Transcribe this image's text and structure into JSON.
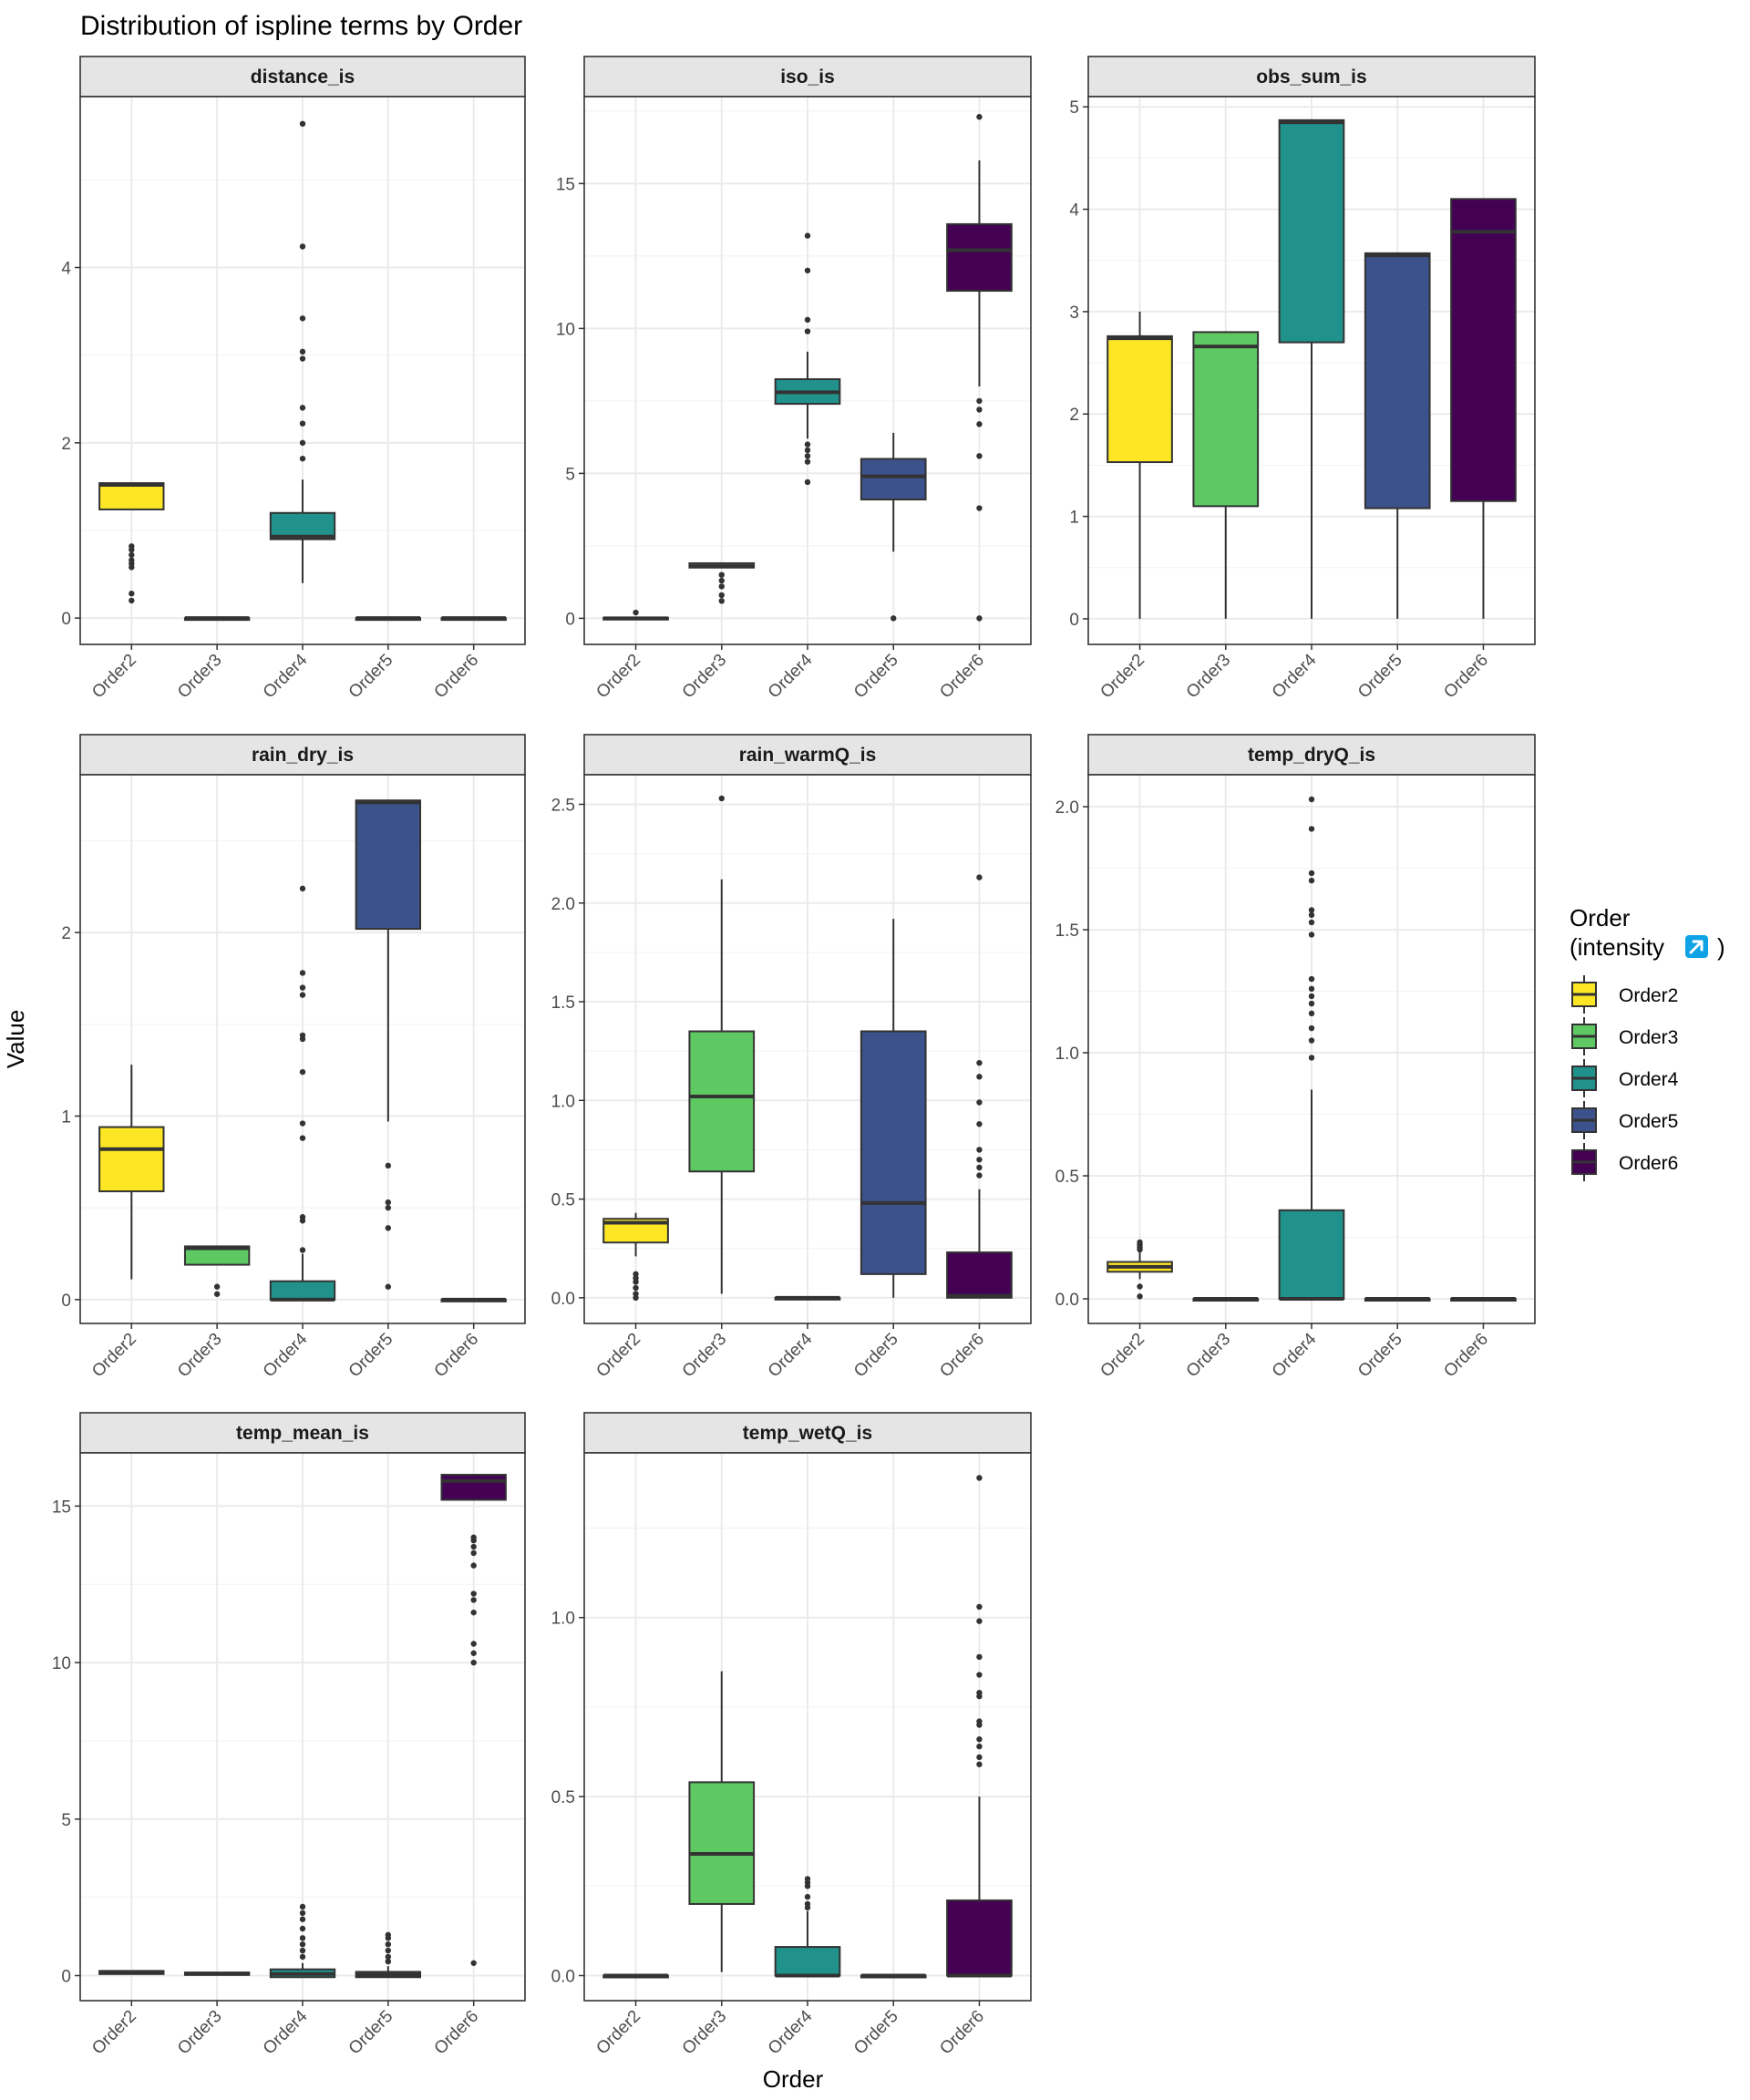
{
  "title": "Distribution of ispline terms by Order",
  "axis": {
    "x_label": "Order",
    "y_label": "Value"
  },
  "legend": {
    "title_line1": "Order",
    "title_line2_prefix": "(intensity",
    "title_icon": "arrow-up-right-icon",
    "title_line2_suffix": ")",
    "items": [
      "Order2",
      "Order3",
      "Order4",
      "Order5",
      "Order6"
    ],
    "colors": [
      "#FDE725",
      "#5EC962",
      "#21918C",
      "#3B528B",
      "#440154"
    ]
  },
  "chart_data": [
    {
      "type": "box",
      "panel": "distance_is",
      "categories": [
        "Order2",
        "Order3",
        "Order4",
        "Order5",
        "Order6"
      ],
      "ylim": [
        -0.3,
        5.95
      ],
      "yticks": [
        0,
        2,
        4
      ],
      "ytick_labels": [
        "0",
        "2",
        "4"
      ],
      "boxes": [
        {
          "q1": 1.24,
          "median": 1.52,
          "q3": 1.54,
          "whisker_low": 1.24,
          "whisker_high": 1.54,
          "outliers": [
            0.2,
            0.28,
            0.58,
            0.62,
            0.66,
            0.72,
            0.78,
            0.82
          ]
        },
        {
          "q1": 0,
          "median": 0,
          "q3": 0,
          "whisker_low": 0,
          "whisker_high": 0,
          "outliers": []
        },
        {
          "q1": 0.9,
          "median": 0.93,
          "q3": 1.2,
          "whisker_low": 0.4,
          "whisker_high": 1.58,
          "outliers": [
            1.82,
            2.0,
            2.22,
            2.4,
            2.96,
            3.04,
            3.42,
            4.24,
            5.64
          ]
        },
        {
          "q1": 0,
          "median": 0,
          "q3": 0,
          "whisker_low": 0,
          "whisker_high": 0,
          "outliers": []
        },
        {
          "q1": 0,
          "median": 0,
          "q3": 0,
          "whisker_low": 0,
          "whisker_high": 0,
          "outliers": []
        }
      ]
    },
    {
      "type": "box",
      "panel": "iso_is",
      "categories": [
        "Order2",
        "Order3",
        "Order4",
        "Order5",
        "Order6"
      ],
      "ylim": [
        -0.9,
        18.0
      ],
      "yticks": [
        0,
        5,
        10,
        15
      ],
      "ytick_labels": [
        "0",
        "5",
        "10",
        "15"
      ],
      "boxes": [
        {
          "q1": 0,
          "median": 0,
          "q3": 0.02,
          "whisker_low": 0,
          "whisker_high": 0.05,
          "outliers": [
            0.2
          ]
        },
        {
          "q1": 1.75,
          "median": 1.8,
          "q3": 1.9,
          "whisker_low": 1.75,
          "whisker_high": 1.9,
          "outliers": [
            0.6,
            0.8,
            1.1,
            1.3,
            1.5
          ]
        },
        {
          "q1": 7.4,
          "median": 7.8,
          "q3": 8.25,
          "whisker_low": 6.2,
          "whisker_high": 9.2,
          "outliers": [
            4.7,
            5.4,
            5.6,
            5.8,
            6.0,
            9.9,
            10.3,
            12.0,
            13.2
          ]
        },
        {
          "q1": 4.1,
          "median": 4.9,
          "q3": 5.5,
          "whisker_low": 2.3,
          "whisker_high": 6.4,
          "outliers": [
            0
          ]
        },
        {
          "q1": 11.3,
          "median": 12.7,
          "q3": 13.6,
          "whisker_low": 8.0,
          "whisker_high": 15.8,
          "outliers": [
            0,
            3.8,
            5.6,
            6.7,
            7.2,
            7.5,
            17.3
          ]
        }
      ]
    },
    {
      "type": "box",
      "panel": "obs_sum_is",
      "categories": [
        "Order2",
        "Order3",
        "Order4",
        "Order5",
        "Order6"
      ],
      "ylim": [
        -0.25,
        5.1
      ],
      "yticks": [
        0,
        1,
        2,
        3,
        4,
        5
      ],
      "ytick_labels": [
        "0",
        "1",
        "2",
        "3",
        "4",
        "5"
      ],
      "boxes": [
        {
          "q1": 1.53,
          "median": 2.74,
          "q3": 2.76,
          "whisker_low": 0,
          "whisker_high": 3.0,
          "outliers": []
        },
        {
          "q1": 1.1,
          "median": 2.66,
          "q3": 2.8,
          "whisker_low": 0,
          "whisker_high": 2.8,
          "outliers": []
        },
        {
          "q1": 2.7,
          "median": 4.85,
          "q3": 4.87,
          "whisker_low": 0,
          "whisker_high": 4.87,
          "outliers": []
        },
        {
          "q1": 1.08,
          "median": 3.55,
          "q3": 3.57,
          "whisker_low": 0,
          "whisker_high": 3.57,
          "outliers": []
        },
        {
          "q1": 1.15,
          "median": 3.78,
          "q3": 4.1,
          "whisker_low": 0,
          "whisker_high": 4.1,
          "outliers": []
        }
      ]
    },
    {
      "type": "box",
      "panel": "rain_dry_is",
      "categories": [
        "Order2",
        "Order3",
        "Order4",
        "Order5",
        "Order6"
      ],
      "ylim": [
        -0.13,
        2.86
      ],
      "yticks": [
        0,
        1,
        2
      ],
      "ytick_labels": [
        "0",
        "1",
        "2"
      ],
      "boxes": [
        {
          "q1": 0.59,
          "median": 0.82,
          "q3": 0.94,
          "whisker_low": 0.11,
          "whisker_high": 1.28,
          "outliers": []
        },
        {
          "q1": 0.19,
          "median": 0.28,
          "q3": 0.29,
          "whisker_low": 0.19,
          "whisker_high": 0.29,
          "outliers": [
            0.03,
            0.07
          ]
        },
        {
          "q1": 0,
          "median": 0,
          "q3": 0.1,
          "whisker_low": 0,
          "whisker_high": 0.25,
          "outliers": [
            0.27,
            0.45,
            0.43,
            0.88,
            0.96,
            1.24,
            1.42,
            1.44,
            1.66,
            1.7,
            1.78,
            2.24
          ]
        },
        {
          "q1": 2.02,
          "median": 2.71,
          "q3": 2.72,
          "whisker_low": 0.97,
          "whisker_high": 2.72,
          "outliers": [
            0.07,
            0.39,
            0.5,
            0.53,
            0.73
          ]
        },
        {
          "q1": 0,
          "median": 0,
          "q3": 0,
          "whisker_low": 0,
          "whisker_high": 0,
          "outliers": []
        }
      ]
    },
    {
      "type": "box",
      "panel": "rain_warmQ_is",
      "categories": [
        "Order2",
        "Order3",
        "Order4",
        "Order5",
        "Order6"
      ],
      "ylim": [
        -0.13,
        2.65
      ],
      "yticks": [
        0,
        0.5,
        1.0,
        1.5,
        2.0,
        2.5
      ],
      "ytick_labels": [
        "0.0",
        "0.5",
        "1.0",
        "1.5",
        "2.0",
        "2.5"
      ],
      "boxes": [
        {
          "q1": 0.28,
          "median": 0.38,
          "q3": 0.4,
          "whisker_low": 0.21,
          "whisker_high": 0.43,
          "outliers": [
            0,
            0.02,
            0.05,
            0.08,
            0.1,
            0.12
          ]
        },
        {
          "q1": 0.64,
          "median": 1.02,
          "q3": 1.35,
          "whisker_low": 0.02,
          "whisker_high": 2.12,
          "outliers": [
            2.53
          ]
        },
        {
          "q1": 0,
          "median": 0,
          "q3": 0,
          "whisker_low": 0,
          "whisker_high": 0,
          "outliers": []
        },
        {
          "q1": 0.12,
          "median": 0.48,
          "q3": 1.35,
          "whisker_low": 0,
          "whisker_high": 1.92,
          "outliers": []
        },
        {
          "q1": 0,
          "median": 0.01,
          "q3": 0.23,
          "whisker_low": 0,
          "whisker_high": 0.55,
          "outliers": [
            0.62,
            0.66,
            0.7,
            0.75,
            0.88,
            0.99,
            1.12,
            1.19,
            2.13
          ]
        }
      ]
    },
    {
      "type": "box",
      "panel": "temp_dryQ_is",
      "categories": [
        "Order2",
        "Order3",
        "Order4",
        "Order5",
        "Order6"
      ],
      "ylim": [
        -0.1,
        2.13
      ],
      "yticks": [
        0,
        0.5,
        1.0,
        1.5,
        2.0
      ],
      "ytick_labels": [
        "0.0",
        "0.5",
        "1.0",
        "1.5",
        "2.0"
      ],
      "boxes": [
        {
          "q1": 0.11,
          "median": 0.13,
          "q3": 0.15,
          "whisker_low": 0.08,
          "whisker_high": 0.19,
          "outliers": [
            0.01,
            0.05,
            0.2,
            0.21,
            0.22,
            0.23
          ]
        },
        {
          "q1": 0,
          "median": 0,
          "q3": 0,
          "whisker_low": 0,
          "whisker_high": 0,
          "outliers": []
        },
        {
          "q1": 0,
          "median": 0,
          "q3": 0.36,
          "whisker_low": 0,
          "whisker_high": 0.85,
          "outliers": [
            0.98,
            1.05,
            1.1,
            1.16,
            1.2,
            1.23,
            1.26,
            1.3,
            1.48,
            1.53,
            1.56,
            1.58,
            1.7,
            1.73,
            1.91,
            2.03
          ]
        },
        {
          "q1": 0,
          "median": 0,
          "q3": 0,
          "whisker_low": 0,
          "whisker_high": 0,
          "outliers": []
        },
        {
          "q1": 0,
          "median": 0,
          "q3": 0,
          "whisker_low": 0,
          "whisker_high": 0,
          "outliers": []
        }
      ]
    },
    {
      "type": "box",
      "panel": "temp_mean_is",
      "categories": [
        "Order2",
        "Order3",
        "Order4",
        "Order5",
        "Order6"
      ],
      "ylim": [
        -0.8,
        16.7
      ],
      "yticks": [
        0,
        5,
        10,
        15
      ],
      "ytick_labels": [
        "0",
        "5",
        "10",
        "15"
      ],
      "boxes": [
        {
          "q1": 0.05,
          "median": 0.1,
          "q3": 0.15,
          "whisker_low": 0.05,
          "whisker_high": 0.15,
          "outliers": []
        },
        {
          "q1": 0.02,
          "median": 0.06,
          "q3": 0.1,
          "whisker_low": 0.02,
          "whisker_high": 0.1,
          "outliers": []
        },
        {
          "q1": -0.05,
          "median": 0.05,
          "q3": 0.2,
          "whisker_low": -0.05,
          "whisker_high": 0.4,
          "outliers": [
            0.6,
            0.8,
            1.0,
            1.2,
            1.5,
            1.8,
            2.0,
            2.2
          ]
        },
        {
          "q1": -0.05,
          "median": 0.03,
          "q3": 0.12,
          "whisker_low": -0.05,
          "whisker_high": 0.3,
          "outliers": [
            0.45,
            0.6,
            0.8,
            1.0,
            1.2,
            1.3
          ]
        },
        {
          "q1": 15.2,
          "median": 15.8,
          "q3": 16.0,
          "whisker_low": 15.2,
          "whisker_high": 16.0,
          "outliers": [
            0.4,
            10.0,
            10.3,
            10.6,
            11.6,
            12.0,
            12.2,
            13.1,
            13.5,
            13.7,
            13.9,
            14.0
          ]
        }
      ]
    },
    {
      "type": "box",
      "panel": "temp_wetQ_is",
      "categories": [
        "Order2",
        "Order3",
        "Order4",
        "Order5",
        "Order6"
      ],
      "ylim": [
        -0.07,
        1.46
      ],
      "yticks": [
        0,
        0.5,
        1.0
      ],
      "ytick_labels": [
        "0.0",
        "0.5",
        "1.0"
      ],
      "boxes": [
        {
          "q1": 0,
          "median": 0,
          "q3": 0,
          "whisker_low": 0,
          "whisker_high": 0,
          "outliers": []
        },
        {
          "q1": 0.2,
          "median": 0.34,
          "q3": 0.54,
          "whisker_low": 0.01,
          "whisker_high": 0.85,
          "outliers": []
        },
        {
          "q1": 0,
          "median": 0,
          "q3": 0.08,
          "whisker_low": 0,
          "whisker_high": 0.18,
          "outliers": [
            0.19,
            0.2,
            0.22,
            0.25,
            0.26,
            0.27
          ]
        },
        {
          "q1": 0,
          "median": 0,
          "q3": 0,
          "whisker_low": 0,
          "whisker_high": 0,
          "outliers": []
        },
        {
          "q1": 0,
          "median": 0,
          "q3": 0.21,
          "whisker_low": 0,
          "whisker_high": 0.5,
          "outliers": [
            0.59,
            0.61,
            0.64,
            0.66,
            0.7,
            0.71,
            0.78,
            0.79,
            0.84,
            0.89,
            0.99,
            1.03,
            1.39
          ]
        }
      ]
    }
  ]
}
